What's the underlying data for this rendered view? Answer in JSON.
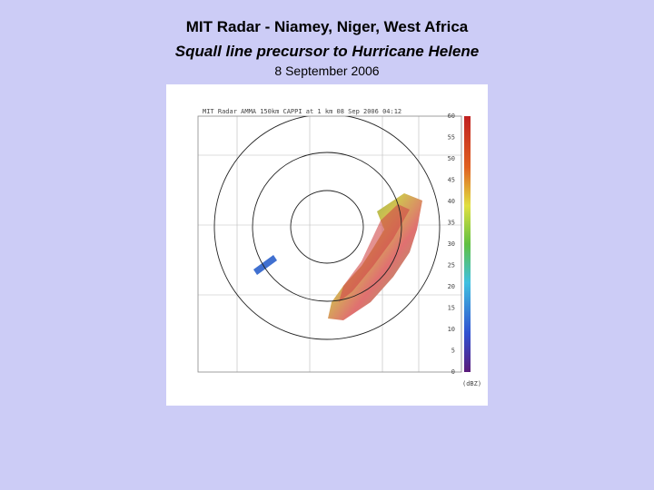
{
  "slide": {
    "title": "MIT Radar - Niamey, Niger, West Africa",
    "subtitle": "Squall line precursor to Hurricane Helene",
    "date": "8 September 2006",
    "image": {
      "header": "MIT Radar AMMA 150km CAPPI at 1 km 08 Sep 2006 04:12",
      "colorbar_labels": [
        "60",
        "55",
        "50",
        "45",
        "40",
        "35",
        "30",
        "25",
        "20",
        "15",
        "10",
        "5",
        "0"
      ],
      "colorbar_unit": "(dBZ)"
    }
  }
}
